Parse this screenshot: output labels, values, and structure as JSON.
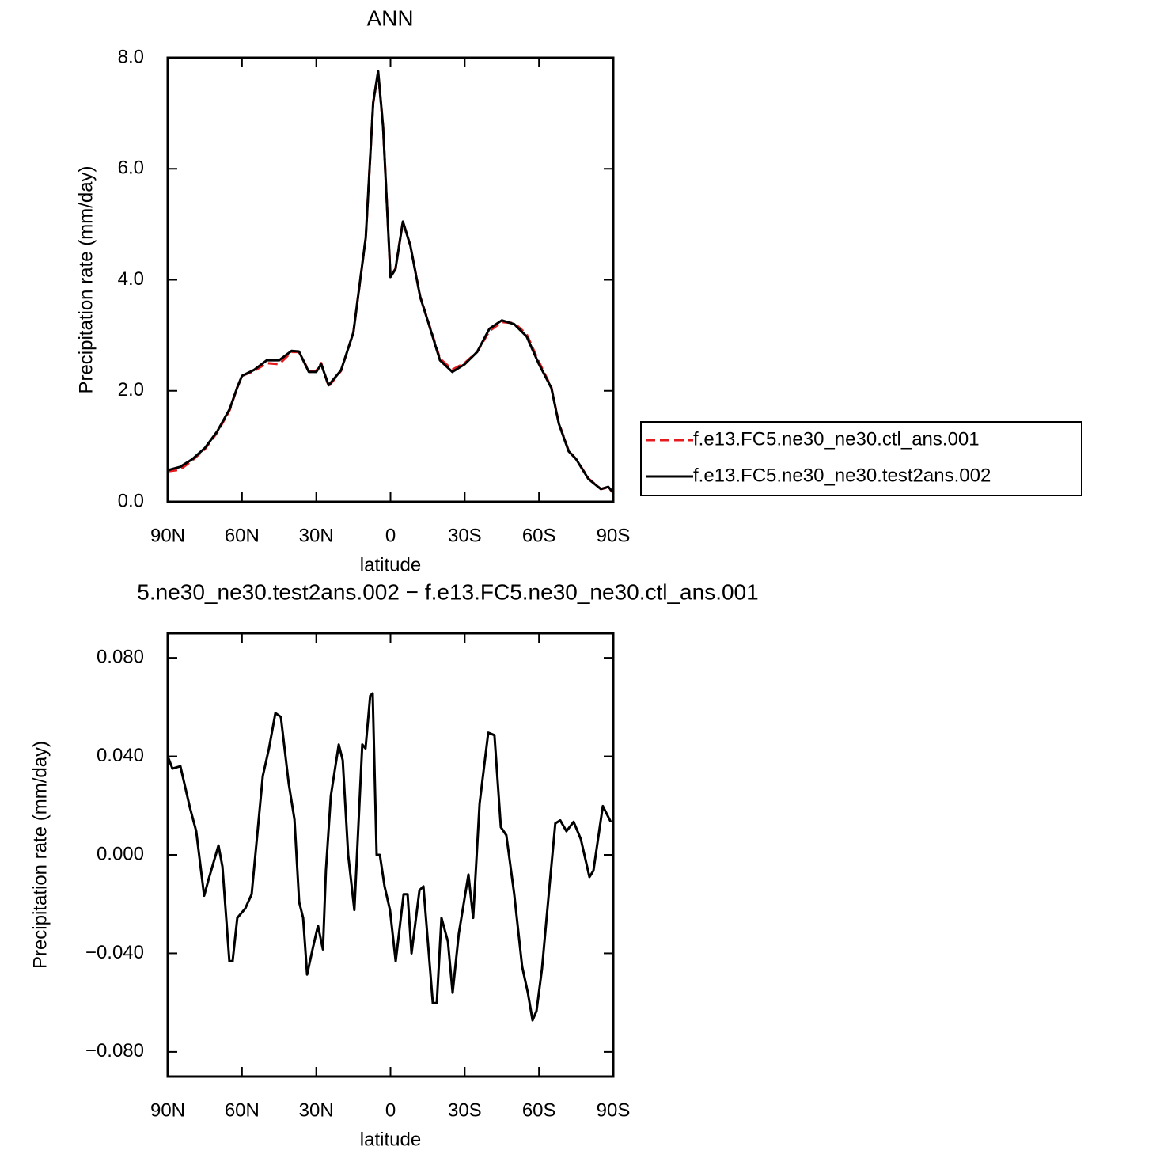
{
  "chart_data": [
    {
      "type": "line",
      "title": "ANN",
      "xlabel": "latitude",
      "ylabel": "Precipitation rate (mm/day)",
      "x": [
        90,
        85,
        80,
        75,
        70,
        65,
        62,
        60,
        55,
        50,
        45,
        40,
        37,
        33,
        30,
        28,
        25,
        20,
        15,
        10,
        7,
        5,
        3,
        0,
        -2,
        -5,
        -8,
        -12,
        -15,
        -20,
        -25,
        -30,
        -35,
        -40,
        -45,
        -50,
        -55,
        -60,
        -65,
        -68,
        -72,
        -75,
        -80,
        -85,
        -88,
        -90
      ],
      "series": [
        {
          "name": "f.e13.FC5.ne30_ne30.ctl_ans.001",
          "color": "#e41a1c",
          "dash": "dashed",
          "values": [
            0.55,
            0.58,
            0.75,
            0.95,
            1.25,
            1.65,
            2.05,
            2.27,
            2.36,
            2.5,
            2.48,
            2.7,
            2.7,
            2.36,
            2.36,
            2.5,
            2.08,
            2.36,
            3.05,
            4.76,
            7.19,
            7.74,
            6.76,
            4.06,
            4.2,
            5.05,
            4.62,
            3.7,
            3.28,
            2.58,
            2.38,
            2.5,
            2.7,
            3.08,
            3.24,
            3.22,
            3.02,
            2.52,
            2.06,
            1.42,
            0.92,
            0.77,
            0.42,
            0.23,
            0.26,
            0.16
          ]
        },
        {
          "name": "f.e13.FC5.ne30_ne30.test2ans.002",
          "color": "#000000",
          "dash": "solid",
          "values": [
            0.57,
            0.63,
            0.77,
            0.97,
            1.27,
            1.67,
            2.05,
            2.27,
            2.38,
            2.55,
            2.55,
            2.72,
            2.71,
            2.34,
            2.34,
            2.48,
            2.1,
            2.37,
            3.05,
            4.76,
            7.19,
            7.76,
            6.76,
            4.05,
            4.19,
            5.05,
            4.62,
            3.69,
            3.27,
            2.55,
            2.34,
            2.48,
            2.7,
            3.12,
            3.27,
            3.2,
            2.98,
            2.48,
            2.05,
            1.41,
            0.91,
            0.77,
            0.41,
            0.23,
            0.27,
            0.17
          ]
        }
      ],
      "xlim": [
        90,
        -90
      ],
      "xticks": [
        {
          "value": 90,
          "label": "90N"
        },
        {
          "value": 60,
          "label": "60N"
        },
        {
          "value": 30,
          "label": "30N"
        },
        0,
        {
          "value": -30,
          "label": "30S"
        },
        {
          "value": -60,
          "label": "60S"
        },
        {
          "value": -90,
          "label": "90S"
        }
      ],
      "ylim": [
        0,
        8
      ],
      "yticks": [
        {
          "value": 0,
          "label": "0.0"
        },
        {
          "value": 2,
          "label": "2.0"
        },
        {
          "value": 4,
          "label": "4.0"
        },
        {
          "value": 6,
          "label": "6.0"
        },
        {
          "value": 8,
          "label": "8.0"
        }
      ],
      "legend": "outside-right"
    },
    {
      "type": "line",
      "title": "5.ne30_ne30.test2ans.002 − f.e13.FC5.ne30_ne30.ctl_ans.001",
      "xlabel": "latitude",
      "ylabel": "Precipitation rate (mm/day)",
      "x": [
        90,
        88.1,
        84.9,
        81,
        78.5,
        75.3,
        73.4,
        69.5,
        67.9,
        65.1,
        63.8,
        61.9,
        58.7,
        56.1,
        51.6,
        49.1,
        46.5,
        44.3,
        41.1,
        38.8,
        36.9,
        35.3,
        33.7,
        31.5,
        29.3,
        27.3,
        26.1,
        24.1,
        20.9,
        19.3,
        17.1,
        14.6,
        11.4,
        10.1,
        8.2,
        7.2,
        5.6,
        4.3,
        2.4,
        0.2,
        -2.1,
        -5.3,
        -6.9,
        -8.5,
        -11.7,
        -13.3,
        -17.1,
        -18.7,
        -20.6,
        -23.2,
        -25.1,
        -27.6,
        -31.5,
        -33.4,
        -36,
        -39.5,
        -42,
        -44.6,
        -46.8,
        -50,
        -53.2,
        -55.5,
        -57.4,
        -59,
        -61.2,
        -63.8,
        -66.6,
        -68.6,
        -71.1,
        -74,
        -76.9,
        -80.4,
        -82,
        -85.8,
        -89
      ],
      "values": [
        0.04,
        0.035,
        0.036,
        0.019,
        0.0096,
        -0.0166,
        -0.0096,
        0.0038,
        -0.0048,
        -0.0432,
        -0.0432,
        -0.0256,
        -0.0218,
        -0.016,
        0.032,
        0.0432,
        0.0576,
        0.056,
        0.0288,
        0.0144,
        -0.0192,
        -0.0256,
        -0.0486,
        -0.0384,
        -0.0288,
        -0.0384,
        -0.0064,
        0.024,
        0.0448,
        0.0384,
        0.0,
        -0.0224,
        0.0448,
        0.0432,
        0.0646,
        0.0656,
        0.0,
        0.0,
        -0.0128,
        -0.0224,
        -0.0432,
        -0.016,
        -0.016,
        -0.04,
        -0.0144,
        -0.0128,
        -0.0602,
        -0.0602,
        -0.0256,
        -0.0352,
        -0.056,
        -0.032,
        -0.008,
        -0.0256,
        0.0208,
        0.0496,
        0.0486,
        0.0112,
        0.008,
        -0.016,
        -0.0454,
        -0.056,
        -0.0672,
        -0.0634,
        -0.0464,
        -0.0176,
        0.0128,
        0.014,
        0.0096,
        0.0134,
        0.0064,
        -0.009,
        -0.0064,
        0.0198,
        0.0134
      ],
      "color": "#000000",
      "xlim": [
        90,
        -90
      ],
      "xticks": [
        {
          "value": 90,
          "label": "90N"
        },
        {
          "value": 60,
          "label": "60N"
        },
        {
          "value": 30,
          "label": "30N"
        },
        0,
        {
          "value": -30,
          "label": "30S"
        },
        {
          "value": -60,
          "label": "60S"
        },
        {
          "value": -90,
          "label": "90S"
        }
      ],
      "ylim": [
        -0.09,
        0.09
      ],
      "yticks": [
        {
          "value": -0.08,
          "label": "−0.080"
        },
        {
          "value": -0.04,
          "label": "−0.040"
        },
        {
          "value": 0,
          "label": "0.000"
        },
        {
          "value": 0.04,
          "label": "0.040"
        },
        {
          "value": 0.08,
          "label": "0.080"
        }
      ]
    }
  ]
}
